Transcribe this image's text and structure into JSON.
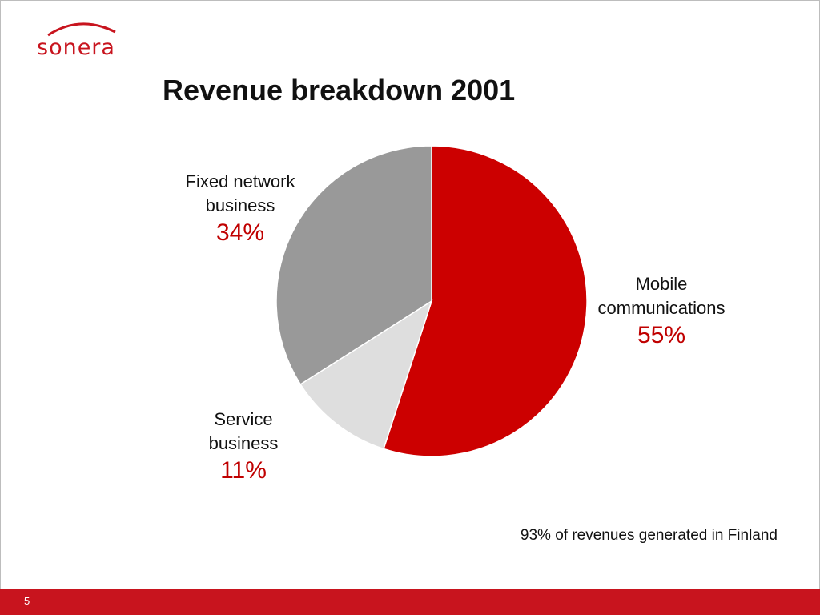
{
  "brand": {
    "name": "sonera",
    "color": "#c8141e"
  },
  "slide": {
    "title": "Revenue breakdown 2001",
    "note": "93% of revenues generated in Finland",
    "page_number": "5"
  },
  "chart_data": {
    "type": "pie",
    "title": "Revenue breakdown 2001",
    "slices": [
      {
        "name": "Mobile communications",
        "label_lines": [
          "Mobile",
          "communications"
        ],
        "value": 55,
        "label": "55%",
        "color": "#cc0000"
      },
      {
        "name": "Service business",
        "label_lines": [
          "Service",
          "business"
        ],
        "value": 11,
        "label": "11%",
        "color": "#dedede"
      },
      {
        "name": "Fixed network business",
        "label_lines": [
          "Fixed network",
          "business"
        ],
        "value": 34,
        "label": "34%",
        "color": "#999999"
      }
    ],
    "start": "12 o'clock",
    "direction": "clockwise",
    "legend": "none"
  }
}
